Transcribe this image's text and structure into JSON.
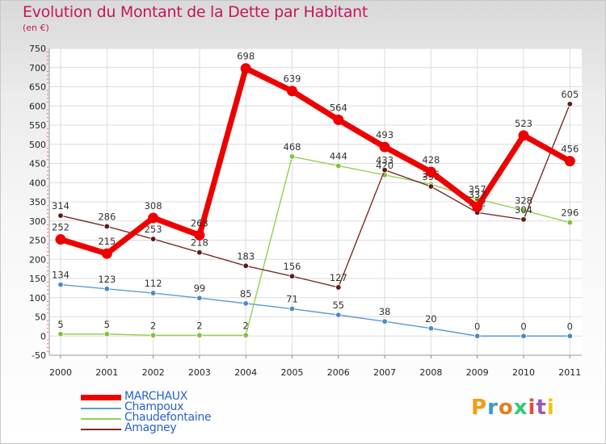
{
  "header": {
    "title": "Evolution du Montant de la Dette par Habitant",
    "subtitle": "(en €)"
  },
  "logo": {
    "text": "Proxiti",
    "colors": [
      "#f39c12",
      "#3498db",
      "#e67e22",
      "#2ecc71",
      "#e74c3c",
      "#9b59b6",
      "#f1c40f"
    ]
  },
  "chart_data": {
    "type": "line",
    "title": "Evolution du Montant de la Dette par Habitant",
    "subtitle": "(en €)",
    "ylim": [
      -50,
      750
    ],
    "yticks": [
      -50,
      0,
      50,
      100,
      150,
      200,
      250,
      300,
      350,
      400,
      450,
      500,
      550,
      600,
      650,
      700,
      750
    ],
    "x": [
      "2000",
      "2001",
      "2002",
      "2003",
      "2004",
      "2005",
      "2006",
      "2007",
      "2008",
      "2009",
      "2010",
      "2011"
    ],
    "grid": true,
    "legend_position": "bottom-left",
    "series": [
      {
        "name": "Champoux",
        "color": "#5b9bd5",
        "marker": "#4a8ac8",
        "values": [
          134,
          123,
          112,
          99,
          85,
          71,
          55,
          38,
          20,
          0,
          0,
          0
        ],
        "labels": [
          "134",
          "123",
          "112",
          "99",
          "85",
          "71",
          "55",
          "38",
          "20",
          "0",
          "0",
          "0"
        ]
      },
      {
        "name": "Chaudefontaine",
        "color": "#92d050",
        "marker": "#7cc43a",
        "values": [
          5,
          5,
          2,
          2,
          2,
          468,
          444,
          420,
          396,
          357,
          328,
          296
        ],
        "labels": [
          "5",
          "5",
          "2",
          "2",
          "2",
          "468",
          "444",
          "420",
          "396",
          "357",
          "328",
          "296"
        ]
      },
      {
        "name": "Amagney",
        "color": "#7b2c2c",
        "marker": "#5c1a1a",
        "values": [
          314,
          286,
          253,
          218,
          183,
          156,
          127,
          433,
          390,
          322,
          304,
          605
        ],
        "labels": [
          "314",
          "286",
          "253",
          "218",
          "183",
          "156",
          "127",
          "433",
          "390",
          "322",
          "304",
          "605"
        ]
      },
      {
        "name": "MARCHAUX",
        "color": "#ee0000",
        "marker": "#ee0000",
        "values": [
          252,
          215,
          308,
          263,
          698,
          639,
          564,
          493,
          428,
          337,
          523,
          456
        ],
        "labels": [
          "252",
          "215",
          "308",
          "263",
          "698",
          "639",
          "564",
          "493",
          "428",
          "337",
          "523",
          "456"
        ]
      }
    ]
  },
  "legend": {
    "items": [
      {
        "label": "MARCHAUX",
        "color": "#ee0000"
      },
      {
        "label": "Champoux",
        "color": "#5b9bd5"
      },
      {
        "label": "Chaudefontaine",
        "color": "#92d050"
      },
      {
        "label": "Amagney",
        "color": "#7b2c2c"
      }
    ]
  }
}
